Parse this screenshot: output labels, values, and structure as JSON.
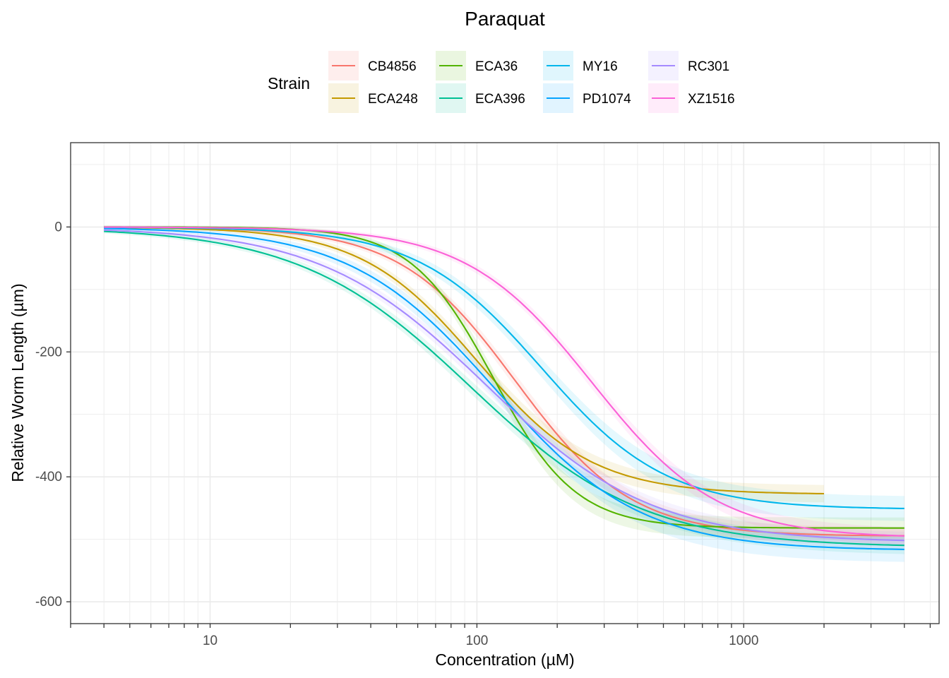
{
  "chart_data": {
    "type": "line",
    "title": "Paraquat",
    "xlabel": "Concentration (µM)",
    "ylabel": "Relative Worm Length (µm)",
    "xscale": "log10",
    "xlim": [
      3,
      5400
    ],
    "ylim": [
      -635,
      135
    ],
    "x_ticks": [
      10,
      100,
      1000
    ],
    "x_tick_labels": [
      "10",
      "100",
      "1000"
    ],
    "y_ticks": [
      0,
      -200,
      -400,
      -600
    ],
    "y_tick_labels": [
      "0",
      "-200",
      "-400",
      "-600"
    ],
    "grid": true,
    "legend": {
      "title": "Strain",
      "position": "top"
    },
    "series": [
      {
        "name": "CB4856",
        "color": "#F8766D",
        "model": "four-parameter log-logistic",
        "top": 0,
        "bottom": -495,
        "ec50": 140,
        "hill": 2.0,
        "x_range": [
          4,
          4000
        ],
        "ci": 12
      },
      {
        "name": "ECA248",
        "color": "#C49A00",
        "model": "four-parameter log-logistic",
        "top": 0,
        "bottom": -428,
        "ec50": 100,
        "hill": 2.0,
        "x_range": [
          4,
          2000
        ],
        "ci": 12
      },
      {
        "name": "ECA36",
        "color": "#53B400",
        "model": "four-parameter log-logistic",
        "top": 0,
        "bottom": -482,
        "ec50": 115,
        "hill": 2.8,
        "x_range": [
          4,
          4000
        ],
        "ci": 15
      },
      {
        "name": "ECA396",
        "color": "#00C094",
        "model": "four-parameter log-logistic",
        "top": 0,
        "bottom": -513,
        "ec50": 95,
        "hill": 1.35,
        "x_range": [
          4,
          4000
        ],
        "ci": 12
      },
      {
        "name": "MY16",
        "color": "#00B6EB",
        "model": "four-parameter log-logistic",
        "top": 0,
        "bottom": -452,
        "ec50": 175,
        "hill": 1.85,
        "x_range": [
          4,
          4000
        ],
        "ci": 18
      },
      {
        "name": "PD1074",
        "color": "#06A4FF",
        "model": "four-parameter log-logistic",
        "top": 0,
        "bottom": -518,
        "ec50": 117,
        "hill": 1.6,
        "x_range": [
          4,
          4000
        ],
        "ci": 18
      },
      {
        "name": "RC301",
        "color": "#A58AFF",
        "model": "four-parameter log-logistic",
        "top": 0,
        "bottom": -505,
        "ec50": 108,
        "hill": 1.4,
        "x_range": [
          4,
          4000
        ],
        "ci": 12
      },
      {
        "name": "XZ1516",
        "color": "#FB61D7",
        "model": "four-parameter log-logistic",
        "top": 0,
        "bottom": -498,
        "ec50": 270,
        "hill": 1.85,
        "x_range": [
          4,
          4000
        ],
        "ci": 12
      }
    ]
  }
}
